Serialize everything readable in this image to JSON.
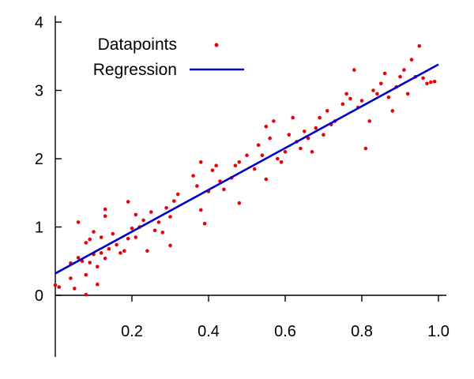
{
  "chart_data": {
    "type": "scatter",
    "title": "",
    "xlabel": "",
    "ylabel": "",
    "xlim": [
      0.0,
      1.0
    ],
    "ylim": [
      0,
      4
    ],
    "x_ticks": [
      0.2,
      0.4,
      0.6,
      0.8,
      1.0
    ],
    "x_tick_labels": [
      "0.2",
      "0.4",
      "0.6",
      "0.8",
      "1.0"
    ],
    "y_ticks": [
      0,
      1,
      2,
      3,
      4
    ],
    "y_tick_labels": [
      "0",
      "1",
      "2",
      "3",
      "4"
    ],
    "grid": false,
    "legend": {
      "placement": "top-left",
      "entries": [
        {
          "label": "Datapoints",
          "style": "point"
        },
        {
          "label": "Regression",
          "style": "line"
        }
      ]
    },
    "series": [
      {
        "name": "Datapoints",
        "kind": "scatter",
        "color": "#e8000b",
        "points": [
          [
            0.0,
            0.15
          ],
          [
            0.01,
            0.12
          ],
          [
            0.04,
            0.47
          ],
          [
            0.04,
            0.25
          ],
          [
            0.05,
            0.1
          ],
          [
            0.06,
            1.07
          ],
          [
            0.06,
            0.55
          ],
          [
            0.07,
            0.5
          ],
          [
            0.08,
            0.3
          ],
          [
            0.08,
            0.01
          ],
          [
            0.08,
            0.77
          ],
          [
            0.09,
            0.82
          ],
          [
            0.09,
            0.48
          ],
          [
            0.1,
            0.93
          ],
          [
            0.1,
            0.6
          ],
          [
            0.11,
            0.42
          ],
          [
            0.11,
            0.16
          ],
          [
            0.12,
            0.62
          ],
          [
            0.12,
            0.85
          ],
          [
            0.13,
            1.26
          ],
          [
            0.13,
            1.16
          ],
          [
            0.13,
            0.54
          ],
          [
            0.14,
            0.68
          ],
          [
            0.15,
            0.9
          ],
          [
            0.16,
            0.74
          ],
          [
            0.17,
            0.62
          ],
          [
            0.18,
            0.65
          ],
          [
            0.19,
            1.37
          ],
          [
            0.19,
            0.83
          ],
          [
            0.2,
            0.98
          ],
          [
            0.21,
            1.18
          ],
          [
            0.21,
            0.85
          ],
          [
            0.22,
            1.0
          ],
          [
            0.23,
            1.1
          ],
          [
            0.24,
            0.65
          ],
          [
            0.25,
            1.22
          ],
          [
            0.26,
            0.95
          ],
          [
            0.27,
            1.07
          ],
          [
            0.28,
            0.92
          ],
          [
            0.29,
            1.28
          ],
          [
            0.3,
            1.15
          ],
          [
            0.3,
            0.73
          ],
          [
            0.31,
            1.38
          ],
          [
            0.32,
            1.48
          ],
          [
            0.36,
            1.75
          ],
          [
            0.37,
            1.6
          ],
          [
            0.38,
            1.95
          ],
          [
            0.38,
            1.25
          ],
          [
            0.39,
            1.05
          ],
          [
            0.4,
            1.52
          ],
          [
            0.41,
            1.83
          ],
          [
            0.42,
            1.9
          ],
          [
            0.43,
            1.67
          ],
          [
            0.44,
            1.55
          ],
          [
            0.46,
            1.72
          ],
          [
            0.47,
            1.9
          ],
          [
            0.48,
            1.35
          ],
          [
            0.48,
            1.95
          ],
          [
            0.5,
            2.05
          ],
          [
            0.52,
            1.85
          ],
          [
            0.53,
            2.2
          ],
          [
            0.54,
            2.05
          ],
          [
            0.55,
            2.47
          ],
          [
            0.55,
            1.7
          ],
          [
            0.56,
            2.3
          ],
          [
            0.57,
            2.55
          ],
          [
            0.58,
            2.0
          ],
          [
            0.59,
            1.95
          ],
          [
            0.6,
            2.1
          ],
          [
            0.61,
            2.35
          ],
          [
            0.62,
            2.6
          ],
          [
            0.63,
            2.25
          ],
          [
            0.64,
            2.15
          ],
          [
            0.65,
            2.4
          ],
          [
            0.66,
            2.3
          ],
          [
            0.67,
            2.1
          ],
          [
            0.68,
            2.45
          ],
          [
            0.69,
            2.6
          ],
          [
            0.7,
            2.35
          ],
          [
            0.71,
            2.7
          ],
          [
            0.72,
            2.5
          ],
          [
            0.73,
            2.55
          ],
          [
            0.75,
            2.8
          ],
          [
            0.76,
            2.95
          ],
          [
            0.77,
            2.88
          ],
          [
            0.78,
            3.3
          ],
          [
            0.79,
            2.75
          ],
          [
            0.8,
            2.85
          ],
          [
            0.81,
            2.15
          ],
          [
            0.82,
            2.55
          ],
          [
            0.83,
            3.0
          ],
          [
            0.84,
            2.95
          ],
          [
            0.85,
            3.1
          ],
          [
            0.86,
            3.25
          ],
          [
            0.87,
            2.9
          ],
          [
            0.88,
            2.7
          ],
          [
            0.89,
            3.05
          ],
          [
            0.9,
            3.2
          ],
          [
            0.91,
            3.3
          ],
          [
            0.92,
            2.95
          ],
          [
            0.93,
            3.45
          ],
          [
            0.94,
            3.2
          ],
          [
            0.95,
            3.65
          ],
          [
            0.96,
            3.18
          ],
          [
            0.97,
            3.1
          ],
          [
            0.98,
            3.12
          ],
          [
            0.99,
            3.13
          ]
        ]
      },
      {
        "name": "Regression",
        "kind": "line",
        "color": "#0000cc",
        "x": [
          0.0,
          1.0
        ],
        "y": [
          0.32,
          3.38
        ]
      }
    ]
  }
}
